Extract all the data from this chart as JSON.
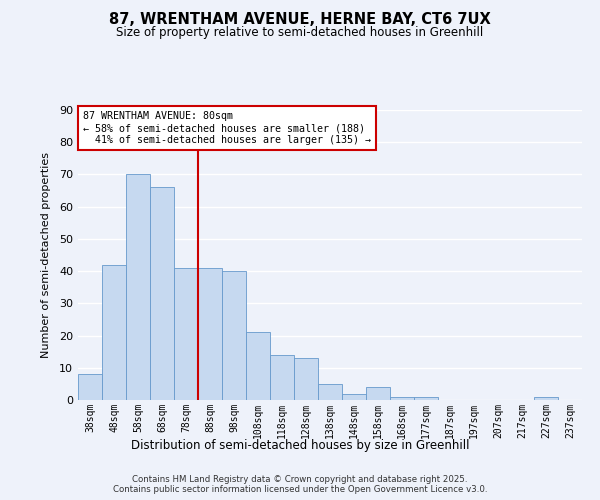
{
  "title1": "87, WRENTHAM AVENUE, HERNE BAY, CT6 7UX",
  "title2": "Size of property relative to semi-detached houses in Greenhill",
  "xlabel": "Distribution of semi-detached houses by size in Greenhill",
  "ylabel": "Number of semi-detached properties",
  "bar_labels": [
    "38sqm",
    "48sqm",
    "58sqm",
    "68sqm",
    "78sqm",
    "88sqm",
    "98sqm",
    "108sqm",
    "118sqm",
    "128sqm",
    "138sqm",
    "148sqm",
    "158sqm",
    "168sqm",
    "177sqm",
    "187sqm",
    "197sqm",
    "207sqm",
    "217sqm",
    "227sqm",
    "237sqm"
  ],
  "bar_values": [
    8,
    42,
    70,
    66,
    41,
    41,
    40,
    21,
    14,
    13,
    5,
    2,
    4,
    1,
    1,
    0,
    0,
    0,
    0,
    1,
    0
  ],
  "bar_color": "#c6d9f0",
  "bar_edge_color": "#6699cc",
  "ylim": [
    0,
    90
  ],
  "yticks": [
    0,
    10,
    20,
    30,
    40,
    50,
    60,
    70,
    80,
    90
  ],
  "property_label": "87 WRENTHAM AVENUE: 80sqm",
  "pct_smaller": 58,
  "count_smaller": 188,
  "pct_larger": 41,
  "count_larger": 135,
  "vline_x_index": 4.5,
  "annotation_box_color": "#ffffff",
  "annotation_box_edge": "#cc0000",
  "vline_color": "#cc0000",
  "background_color": "#eef2fa",
  "grid_color": "#ffffff",
  "footer1": "Contains HM Land Registry data © Crown copyright and database right 2025.",
  "footer2": "Contains public sector information licensed under the Open Government Licence v3.0."
}
